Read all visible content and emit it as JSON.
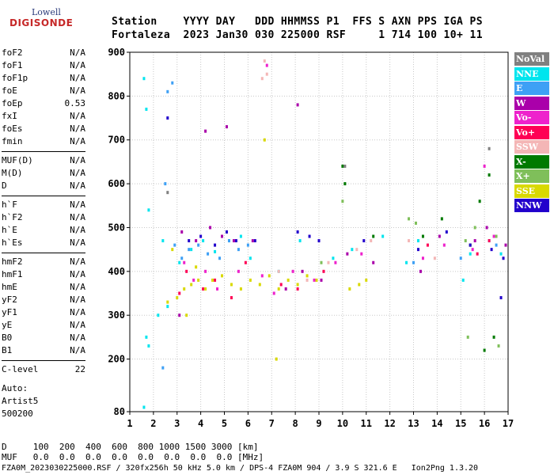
{
  "logo": {
    "top": "Lowell",
    "main": "DIGISONDE"
  },
  "header": {
    "line1": "Station    YYYY DAY   DDD HHMMSS P1  FFS S AXN PPS IGA PS",
    "line2": "Fortaleza  2023 Jan30 030 225000 RSF     1 714 100 10+ 11"
  },
  "params": [
    [
      {
        "name": "foF2",
        "value": "N/A"
      },
      {
        "name": "foF1",
        "value": "N/A"
      },
      {
        "name": "foF1p",
        "value": "N/A"
      },
      {
        "name": "foE",
        "value": "N/A"
      },
      {
        "name": "foEp",
        "value": "0.53"
      },
      {
        "name": "fxI",
        "value": "N/A"
      },
      {
        "name": "foEs",
        "value": "N/A"
      },
      {
        "name": "fmin",
        "value": "N/A"
      }
    ],
    [
      {
        "name": "MUF(D)",
        "value": "N/A"
      },
      {
        "name": "M(D)",
        "value": "N/A"
      },
      {
        "name": "D",
        "value": "N/A"
      }
    ],
    [
      {
        "name": "h`F",
        "value": "N/A"
      },
      {
        "name": "h`F2",
        "value": "N/A"
      },
      {
        "name": "h`E",
        "value": "N/A"
      },
      {
        "name": "h`Es",
        "value": "N/A"
      }
    ],
    [
      {
        "name": "hmF2",
        "value": "N/A"
      },
      {
        "name": "hmF1",
        "value": "N/A"
      },
      {
        "name": "hmE",
        "value": "N/A"
      },
      {
        "name": "yF2",
        "value": "N/A"
      },
      {
        "name": "yF1",
        "value": "N/A"
      },
      {
        "name": "yE",
        "value": "N/A"
      },
      {
        "name": "B0",
        "value": "N/A"
      },
      {
        "name": "B1",
        "value": "N/A"
      }
    ],
    [
      {
        "name": "C-level",
        "value": "22"
      }
    ]
  ],
  "auto": {
    "line1": "Auto:",
    "line2": "Artist5",
    "line3": "500200"
  },
  "legend": [
    {
      "label": "NoVal",
      "color": "#808080"
    },
    {
      "label": "NNE",
      "color": "#00e5ee"
    },
    {
      "label": "E",
      "color": "#3ea0f5"
    },
    {
      "label": "W",
      "color": "#aa00aa"
    },
    {
      "label": "Vo-",
      "color": "#ee22cc"
    },
    {
      "label": "Vo+",
      "color": "#ff0055"
    },
    {
      "label": "SSW",
      "color": "#f4b6b6"
    },
    {
      "label": "X-",
      "color": "#007a00"
    },
    {
      "label": "X+",
      "color": "#7fbf5a"
    },
    {
      "label": "SSE",
      "color": "#d9d900"
    },
    {
      "label": "NNW",
      "color": "#2200cc"
    }
  ],
  "footer": {
    "d_row": "D     100  200  400  600  800 1000 1500 3000 [km]",
    "muf_row": "MUF   0.0  0.0  0.0  0.0  0.0  0.0  0.0  0.0 [MHz]",
    "info_row": "FZA0M_2023030225000.RSF / 320fx256h 50 kHz 5.0 km / DPS-4 FZA0M 904 / 3.9 S 321.6 E   Ion2Png 1.3.20"
  },
  "chart_data": {
    "type": "scatter",
    "title": "",
    "xlabel": "",
    "ylabel": "",
    "xlim": [
      1,
      17
    ],
    "ylim": [
      80,
      900
    ],
    "x_ticks": [
      1,
      2,
      3,
      4,
      5,
      6,
      7,
      8,
      9,
      10,
      11,
      12,
      13,
      14,
      15,
      16,
      17
    ],
    "y_ticks": [
      80,
      200,
      300,
      400,
      500,
      600,
      700,
      800,
      900
    ],
    "grid": true,
    "legend_position": "right",
    "series": [
      {
        "name": "NNE",
        "color": "#00e5ee",
        "x": [
          1.6,
          1.7,
          1.8,
          2.4,
          2.6,
          2.2,
          3.1,
          3.6,
          4.1,
          4.6,
          5.2,
          5.7,
          6.1,
          7.3,
          8.2,
          9.6,
          10.4,
          11.7,
          12.7,
          13.2,
          15.1,
          15.4,
          16.2,
          16.7,
          1.7,
          1.8,
          1.6
        ],
        "y": [
          840,
          770,
          540,
          470,
          320,
          300,
          420,
          450,
          470,
          445,
          470,
          480,
          430,
          400,
          470,
          430,
          450,
          480,
          420,
          470,
          380,
          440,
          470,
          440,
          250,
          230,
          90
        ]
      },
      {
        "name": "E",
        "color": "#3ea0f5",
        "x": [
          2.6,
          2.8,
          2.9,
          3.2,
          3.5,
          3.9,
          4.3,
          4.8,
          5.2,
          5.6,
          6.0,
          2.5,
          2.4,
          13.0,
          15.0,
          16.5
        ],
        "y": [
          810,
          830,
          460,
          430,
          450,
          460,
          440,
          430,
          470,
          450,
          460,
          600,
          180,
          420,
          430,
          460
        ]
      },
      {
        "name": "W",
        "color": "#aa00aa",
        "x": [
          3.2,
          3.8,
          4.4,
          4.9,
          5.4,
          6.2,
          7.6,
          8.3,
          9.1,
          10.2,
          11.3,
          13.3,
          14.1,
          15.6,
          16.1,
          16.9,
          8.1,
          5.1,
          3.1,
          4.2
        ],
        "y": [
          490,
          470,
          500,
          480,
          470,
          470,
          360,
          400,
          380,
          440,
          420,
          400,
          480,
          470,
          500,
          460,
          780,
          730,
          300,
          720
        ]
      },
      {
        "name": "Vo-",
        "color": "#ee22cc",
        "x": [
          3.3,
          3.7,
          4.2,
          4.7,
          5.6,
          6.6,
          7.1,
          7.9,
          8.8,
          9.7,
          10.8,
          13.4,
          14.3,
          15.5,
          16.4,
          16.0,
          6.8
        ],
        "y": [
          420,
          380,
          400,
          360,
          400,
          390,
          350,
          400,
          380,
          420,
          440,
          430,
          460,
          450,
          480,
          640,
          870
        ]
      },
      {
        "name": "Vo+",
        "color": "#ff0055",
        "x": [
          3.1,
          3.4,
          4.1,
          4.6,
          5.3,
          5.9,
          7.4,
          8.1,
          9.2,
          13.6,
          15.7,
          16.2
        ],
        "y": [
          350,
          400,
          360,
          380,
          340,
          420,
          370,
          360,
          400,
          460,
          440,
          470
        ]
      },
      {
        "name": "SSW",
        "color": "#f4b6b6",
        "x": [
          6.7,
          6.8,
          6.6,
          7.3,
          8.5,
          9.4,
          10.6,
          11.2,
          12.8,
          13.9
        ],
        "y": [
          880,
          850,
          840,
          400,
          380,
          420,
          450,
          470,
          470,
          430
        ]
      },
      {
        "name": "X-",
        "color": "#007a00",
        "x": [
          10.0,
          10.1,
          13.4,
          14.2,
          15.4,
          15.8,
          16.2,
          16.0,
          16.4,
          11.3
        ],
        "y": [
          640,
          600,
          480,
          520,
          460,
          560,
          620,
          220,
          250,
          480
        ]
      },
      {
        "name": "X+",
        "color": "#7fbf5a",
        "x": [
          10.0,
          12.8,
          13.1,
          15.2,
          15.6,
          16.5,
          15.3,
          16.6,
          9.1
        ],
        "y": [
          560,
          520,
          510,
          470,
          500,
          480,
          250,
          230,
          420
        ]
      },
      {
        "name": "SSE",
        "color": "#d9d900",
        "x": [
          2.6,
          3.0,
          3.3,
          3.6,
          3.9,
          4.2,
          4.5,
          4.9,
          5.3,
          5.7,
          6.1,
          6.5,
          6.9,
          7.3,
          7.7,
          8.1,
          8.5,
          8.9,
          10.3,
          10.7,
          11.0,
          6.7,
          7.2,
          3.8,
          2.8,
          3.4
        ],
        "y": [
          330,
          340,
          360,
          370,
          380,
          360,
          380,
          390,
          370,
          360,
          380,
          370,
          390,
          360,
          380,
          370,
          390,
          380,
          360,
          370,
          380,
          700,
          200,
          410,
          450,
          300
        ]
      },
      {
        "name": "NNW",
        "color": "#2200cc",
        "x": [
          3.5,
          4.0,
          4.6,
          5.1,
          5.5,
          6.3,
          8.1,
          8.6,
          9.0,
          10.9,
          13.2,
          14.4,
          15.4,
          16.3,
          16.8,
          2.6,
          16.7
        ],
        "y": [
          470,
          480,
          460,
          490,
          470,
          470,
          490,
          480,
          470,
          470,
          450,
          490,
          460,
          450,
          430,
          750,
          340
        ]
      },
      {
        "name": "NoVal",
        "color": "#808080",
        "x": [
          2.6,
          10.1,
          16.2
        ],
        "y": [
          580,
          640,
          680
        ]
      }
    ]
  }
}
